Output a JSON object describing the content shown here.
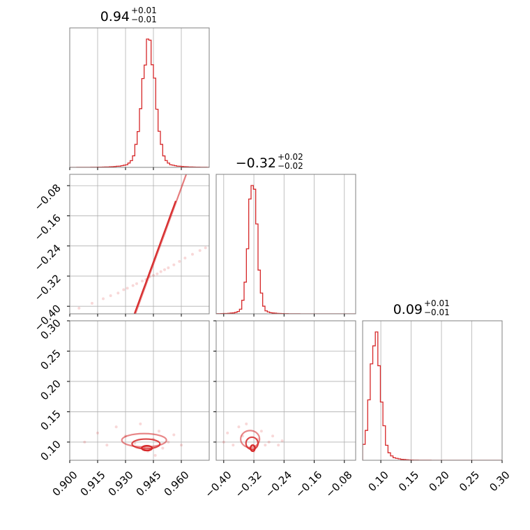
{
  "chart_data": {
    "type": "corner",
    "color": "#d62728",
    "grid": true,
    "parameters": [
      {
        "title": {
          "median": "0.94",
          "plus": "+0.01",
          "minus": "−0.01"
        },
        "range": [
          0.9,
          0.975
        ],
        "ticks": [
          0.9,
          0.915,
          0.93,
          0.945,
          0.96
        ],
        "tick_labels": [
          "0.900",
          "0.915",
          "0.930",
          "0.945",
          "0.960"
        ],
        "hist_center": 0.9425,
        "hist_sigma": 0.0035,
        "hist_tail_scale": 0.006,
        "hist_tail_weight": 0.16,
        "hist_bins": 60
      },
      {
        "title": {
          "median": "−0.32",
          "plus": "+0.02",
          "minus": "−0.02"
        },
        "range": [
          -0.42,
          -0.05
        ],
        "ticks": [
          -0.4,
          -0.32,
          -0.24,
          -0.16,
          -0.08
        ],
        "tick_labels": [
          "−0.40",
          "−0.32",
          "−0.24",
          "−0.16",
          "−0.08"
        ],
        "hist_center": -0.323,
        "hist_sigma": 0.0115,
        "hist_tail_scale": 0.02,
        "hist_tail_weight": 0.1,
        "hist_bins": 60
      },
      {
        "title": {
          "median": "0.09",
          "plus": "+0.01",
          "minus": "−0.01"
        },
        "range": [
          0.07,
          0.3
        ],
        "ticks": [
          0.1,
          0.15,
          0.2,
          0.25,
          0.3
        ],
        "tick_labels": [
          "0.10",
          "0.15",
          "0.20",
          "0.25",
          "0.30"
        ],
        "hist_center": 0.091,
        "hist_sigma": 0.0085,
        "hist_tail_scale": 0.013,
        "hist_tail_weight": 0.28,
        "hist_bins": 55
      }
    ],
    "pairs": [
      {
        "x": 0,
        "y": 1,
        "slope": 13.5,
        "sample_points": [
          [
            0.905,
            -0.405
          ],
          [
            0.912,
            -0.392
          ],
          [
            0.918,
            -0.38
          ],
          [
            0.922,
            -0.372
          ],
          [
            0.926,
            -0.365
          ],
          [
            0.929,
            -0.356
          ],
          [
            0.931,
            -0.352
          ],
          [
            0.934,
            -0.345
          ],
          [
            0.936,
            -0.34
          ],
          [
            0.939,
            -0.333
          ],
          [
            0.941,
            -0.329
          ],
          [
            0.943,
            -0.322
          ],
          [
            0.945,
            -0.318
          ],
          [
            0.947,
            -0.314
          ],
          [
            0.949,
            -0.308
          ],
          [
            0.951,
            -0.303
          ],
          [
            0.953,
            -0.298
          ],
          [
            0.956,
            -0.29
          ],
          [
            0.959,
            -0.281
          ],
          [
            0.962,
            -0.272
          ],
          [
            0.966,
            -0.262
          ],
          [
            0.97,
            -0.252
          ],
          [
            0.973,
            -0.245
          ]
        ],
        "contours": [
          {
            "center": [
              0.9425,
              -0.322
            ],
            "half_length": 0.025,
            "half_width": 0.0017,
            "opacity": 0.6
          },
          {
            "center": [
              0.942,
              -0.323
            ],
            "half_length": 0.015,
            "half_width": 0.0011,
            "opacity": 0.95
          }
        ]
      },
      {
        "x": 0,
        "y": 2,
        "sample_points": [
          [
            0.908,
            0.1
          ],
          [
            0.915,
            0.115
          ],
          [
            0.92,
            0.095
          ],
          [
            0.925,
            0.125
          ],
          [
            0.93,
            0.11
          ],
          [
            0.935,
            0.098
          ],
          [
            0.938,
            0.13
          ],
          [
            0.94,
            0.092
          ],
          [
            0.942,
            0.085
          ],
          [
            0.945,
            0.105
          ],
          [
            0.948,
            0.118
          ],
          [
            0.95,
            0.09
          ],
          [
            0.953,
            0.1
          ],
          [
            0.956,
            0.112
          ],
          [
            0.96,
            0.095
          ],
          [
            0.946,
            0.078
          ]
        ],
        "contours": [
          {
            "center": [
              0.94,
              0.103
            ],
            "rx": 0.012,
            "ry": 0.011,
            "opacity": 0.55
          },
          {
            "center": [
              0.941,
              0.097
            ],
            "rx": 0.0075,
            "ry": 0.008,
            "opacity": 0.85
          },
          {
            "center": [
              0.9415,
              0.09
            ],
            "rx": 0.0028,
            "ry": 0.004,
            "opacity": 1.0
          }
        ]
      },
      {
        "x": 1,
        "y": 2,
        "sample_points": [
          [
            -0.4,
            0.1
          ],
          [
            -0.39,
            0.115
          ],
          [
            -0.375,
            0.095
          ],
          [
            -0.36,
            0.125
          ],
          [
            -0.35,
            0.11
          ],
          [
            -0.34,
            0.13
          ],
          [
            -0.33,
            0.09
          ],
          [
            -0.32,
            0.085
          ],
          [
            -0.31,
            0.105
          ],
          [
            -0.3,
            0.118
          ],
          [
            -0.29,
            0.095
          ],
          [
            -0.28,
            0.1
          ],
          [
            -0.27,
            0.11
          ],
          [
            -0.255,
            0.095
          ],
          [
            -0.245,
            0.102
          ]
        ],
        "contours": [
          {
            "center": [
              -0.33,
              0.105
            ],
            "rx": 0.025,
            "ry": 0.014,
            "opacity": 0.55
          },
          {
            "center": [
              -0.325,
              0.098
            ],
            "rx": 0.016,
            "ry": 0.01,
            "opacity": 0.85
          },
          {
            "center": [
              -0.323,
              0.09
            ],
            "rx": 0.006,
            "ry": 0.005,
            "opacity": 1.0
          }
        ]
      }
    ]
  }
}
